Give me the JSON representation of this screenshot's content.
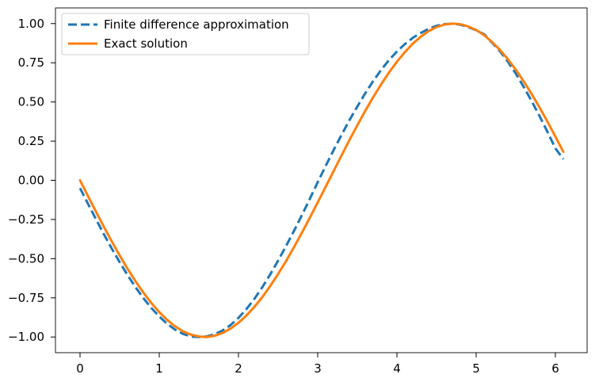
{
  "chart_data": {
    "type": "line",
    "title": "",
    "xlabel": "",
    "ylabel": "",
    "xlim": [
      -0.31,
      6.4
    ],
    "ylim": [
      -1.1,
      1.1
    ],
    "xticks": [
      0,
      1,
      2,
      3,
      4,
      5,
      6
    ],
    "xtick_labels": [
      "0",
      "1",
      "2",
      "3",
      "4",
      "5",
      "6"
    ],
    "yticks": [
      1.0,
      0.75,
      0.5,
      0.25,
      0.0,
      -0.25,
      -0.5,
      -0.75,
      -1.0
    ],
    "ytick_labels": [
      "1.00",
      "0.75",
      "0.50",
      "0.25",
      "0.00",
      "−0.25",
      "−0.50",
      "−0.75",
      "−1.00"
    ],
    "grid": false,
    "legend_position": "top-left",
    "series": [
      {
        "name": "Finite difference approximation",
        "style": "dashed",
        "color": "#1f77b4",
        "x": [
          0.0,
          0.1,
          0.2,
          0.3,
          0.4,
          0.5,
          0.6,
          0.7,
          0.8,
          0.9,
          1.0,
          1.1,
          1.2,
          1.3,
          1.4,
          1.5,
          1.6,
          1.7,
          1.8,
          1.9,
          2.0,
          2.1,
          2.2,
          2.3,
          2.4,
          2.5,
          2.6,
          2.7,
          2.8,
          2.9,
          3.0,
          3.1,
          3.2,
          3.3,
          3.4,
          3.5,
          3.6,
          3.7,
          3.8,
          3.9,
          4.0,
          4.1,
          4.2,
          4.3,
          4.4,
          4.5,
          4.6,
          4.7,
          4.8,
          4.9,
          5.0,
          5.1,
          5.2,
          5.3,
          5.4,
          5.5,
          5.6,
          5.7,
          5.8,
          5.9,
          6.0,
          6.1
        ],
        "y": [
          -0.05,
          -0.149,
          -0.247,
          -0.343,
          -0.435,
          -0.522,
          -0.605,
          -0.682,
          -0.752,
          -0.815,
          -0.869,
          -0.916,
          -0.953,
          -0.98,
          -0.997,
          -1.0,
          -0.996,
          -0.982,
          -0.958,
          -0.924,
          -0.878,
          -0.822,
          -0.757,
          -0.683,
          -0.601,
          -0.513,
          -0.42,
          -0.323,
          -0.223,
          -0.119,
          -0.012,
          0.091,
          0.192,
          0.289,
          0.383,
          0.471,
          0.555,
          0.633,
          0.704,
          0.767,
          0.822,
          0.869,
          0.909,
          0.94,
          0.967,
          0.986,
          0.997,
          0.999,
          0.993,
          0.978,
          0.958,
          0.932,
          0.879,
          0.824,
          0.757,
          0.681,
          0.596,
          0.506,
          0.41,
          0.309,
          0.204,
          0.135
        ]
      },
      {
        "name": "Exact solution",
        "style": "solid",
        "color": "#ff7f0e",
        "x": [
          0.0,
          0.1,
          0.2,
          0.3,
          0.4,
          0.5,
          0.6,
          0.7,
          0.8,
          0.9,
          1.0,
          1.1,
          1.2,
          1.3,
          1.4,
          1.5,
          1.6,
          1.7,
          1.8,
          1.9,
          2.0,
          2.1,
          2.2,
          2.3,
          2.4,
          2.5,
          2.6,
          2.7,
          2.8,
          2.9,
          3.0,
          3.1,
          3.2,
          3.3,
          3.4,
          3.5,
          3.6,
          3.7,
          3.8,
          3.9,
          4.0,
          4.1,
          4.2,
          4.3,
          4.4,
          4.5,
          4.6,
          4.7,
          4.8,
          4.9,
          5.0,
          5.1,
          5.2,
          5.3,
          5.4,
          5.5,
          5.6,
          5.7,
          5.8,
          5.9,
          6.0,
          6.1
        ],
        "y": [
          0.0,
          -0.1,
          -0.199,
          -0.296,
          -0.389,
          -0.479,
          -0.565,
          -0.644,
          -0.717,
          -0.783,
          -0.841,
          -0.891,
          -0.932,
          -0.964,
          -0.985,
          -0.997,
          -1.0,
          -0.992,
          -0.974,
          -0.946,
          -0.909,
          -0.863,
          -0.808,
          -0.746,
          -0.675,
          -0.598,
          -0.516,
          -0.427,
          -0.335,
          -0.239,
          -0.141,
          -0.042,
          0.058,
          0.158,
          0.256,
          0.351,
          0.443,
          0.53,
          0.612,
          0.688,
          0.757,
          0.818,
          0.872,
          0.916,
          0.952,
          0.978,
          0.994,
          1.0,
          0.996,
          0.982,
          0.959,
          0.926,
          0.883,
          0.832,
          0.773,
          0.706,
          0.631,
          0.551,
          0.465,
          0.374,
          0.279,
          0.182
        ]
      }
    ]
  }
}
